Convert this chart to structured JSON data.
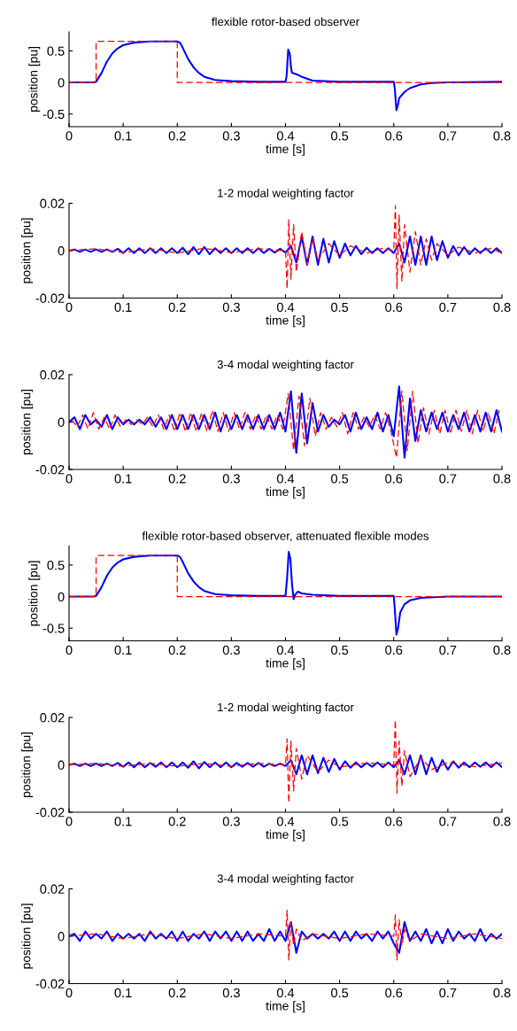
{
  "chart_data": [
    {
      "type": "line",
      "title": "flexible rotor-based observer",
      "xlabel": "time [s]",
      "ylabel": "position [pu]",
      "xlim": [
        0,
        0.8
      ],
      "xticks": [
        0,
        0.1,
        0.2,
        0.3,
        0.4,
        0.5,
        0.6,
        0.7,
        0.8
      ],
      "ylim": [
        -0.7,
        0.8
      ],
      "yticks": [
        -0.5,
        0,
        0.5
      ],
      "series": [
        {
          "color": "#0000ff",
          "x": [
            0,
            0.045,
            0.05,
            0.06,
            0.07,
            0.08,
            0.09,
            0.1,
            0.12,
            0.15,
            0.2,
            0.205,
            0.21,
            0.22,
            0.23,
            0.24,
            0.25,
            0.27,
            0.3,
            0.35,
            0.4,
            0.402,
            0.405,
            0.408,
            0.41,
            0.412,
            0.42,
            0.43,
            0.45,
            0.5,
            0.6,
            0.602,
            0.605,
            0.608,
            0.61,
            0.62,
            0.63,
            0.65,
            0.67,
            0.7,
            0.8
          ],
          "values": [
            0,
            0,
            0.01,
            0.15,
            0.33,
            0.46,
            0.54,
            0.59,
            0.63,
            0.65,
            0.65,
            0.63,
            0.55,
            0.37,
            0.24,
            0.15,
            0.09,
            0.04,
            0.02,
            0.01,
            0.01,
            0.1,
            0.52,
            0.45,
            0.25,
            0.15,
            0.13,
            0.09,
            0.03,
            0.01,
            0.01,
            -0.1,
            -0.44,
            -0.35,
            -0.25,
            -0.15,
            -0.09,
            -0.03,
            -0.01,
            0,
            0.01
          ]
        },
        {
          "color": "#ff0000",
          "line_style": "dashed",
          "x": [
            0,
            0.05,
            0.05,
            0.2,
            0.2,
            0.8
          ],
          "values": [
            0,
            0,
            0.65,
            0.65,
            0,
            0
          ]
        }
      ]
    },
    {
      "type": "line",
      "title": "1-2 modal weighting factor",
      "xlabel": "time [s]",
      "ylabel": "position [pu]",
      "xlim": [
        0,
        0.8
      ],
      "xticks": [
        0,
        0.1,
        0.2,
        0.3,
        0.4,
        0.5,
        0.6,
        0.7,
        0.8
      ],
      "ylim": [
        -0.02,
        0.02
      ],
      "yticks": [
        -0.02,
        0,
        0.02
      ],
      "series": [
        {
          "color": "#0000ff",
          "x": [
            0,
            0.01,
            0.02,
            0.03,
            0.04,
            0.05,
            0.06,
            0.07,
            0.08,
            0.09,
            0.1,
            0.11,
            0.12,
            0.13,
            0.14,
            0.15,
            0.16,
            0.17,
            0.18,
            0.19,
            0.2,
            0.21,
            0.22,
            0.23,
            0.24,
            0.25,
            0.26,
            0.27,
            0.28,
            0.29,
            0.3,
            0.31,
            0.32,
            0.33,
            0.34,
            0.35,
            0.36,
            0.37,
            0.38,
            0.39,
            0.4,
            0.41,
            0.42,
            0.43,
            0.44,
            0.45,
            0.46,
            0.47,
            0.48,
            0.49,
            0.5,
            0.51,
            0.52,
            0.53,
            0.54,
            0.55,
            0.56,
            0.57,
            0.58,
            0.59,
            0.6,
            0.61,
            0.62,
            0.63,
            0.64,
            0.65,
            0.66,
            0.67,
            0.68,
            0.69,
            0.7,
            0.71,
            0.72,
            0.73,
            0.74,
            0.75,
            0.76,
            0.77,
            0.78,
            0.79,
            0.8
          ],
          "values": [
            0,
            0.0005,
            -0.0005,
            0.0005,
            -0.0005,
            0.0005,
            -0.0005,
            0.0005,
            -0.0005,
            0.0008,
            -0.001,
            0.001,
            -0.001,
            0.001,
            -0.001,
            0.001,
            -0.001,
            0.001,
            -0.001,
            0.001,
            -0.001,
            0.0012,
            -0.0015,
            0.0015,
            -0.0015,
            0.0015,
            -0.0015,
            0.001,
            -0.001,
            0.001,
            -0.001,
            0.001,
            -0.001,
            0.001,
            -0.001,
            0.001,
            -0.001,
            0.0008,
            -0.0008,
            0.0008,
            -0.0008,
            0.002,
            -0.005,
            0.006,
            -0.006,
            0.006,
            -0.006,
            0.005,
            -0.005,
            0.004,
            -0.003,
            0.003,
            -0.002,
            0.002,
            -0.0015,
            0.0012,
            -0.001,
            0.001,
            -0.001,
            0.001,
            -0.001,
            0.003,
            -0.005,
            0.006,
            -0.006,
            0.006,
            -0.006,
            0.006,
            -0.004,
            0.004,
            -0.003,
            0.002,
            -0.002,
            0.0015,
            -0.0015,
            0.001,
            -0.001,
            0.001,
            -0.001,
            0.001,
            -0.001
          ]
        },
        {
          "color": "#ff0000",
          "line_style": "dashed",
          "x": [
            0,
            0.05,
            0.1,
            0.15,
            0.2,
            0.25,
            0.3,
            0.35,
            0.4,
            0.403,
            0.406,
            0.41,
            0.415,
            0.42,
            0.43,
            0.44,
            0.45,
            0.46,
            0.48,
            0.5,
            0.52,
            0.55,
            0.58,
            0.6,
            0.603,
            0.606,
            0.61,
            0.615,
            0.62,
            0.63,
            0.64,
            0.65,
            0.66,
            0.67,
            0.68,
            0.7,
            0.72,
            0.75,
            0.78,
            0.8
          ],
          "values": [
            0,
            0.0008,
            -0.0008,
            0.0008,
            -0.001,
            0.001,
            -0.0008,
            0.0008,
            0,
            -0.016,
            0.013,
            -0.012,
            0.011,
            -0.009,
            0.008,
            -0.006,
            0.005,
            -0.004,
            0.003,
            -0.002,
            0.002,
            -0.001,
            0.001,
            0,
            0.019,
            -0.016,
            0.015,
            -0.013,
            0.011,
            -0.009,
            0.008,
            -0.006,
            0.005,
            -0.004,
            0.003,
            -0.002,
            0.0015,
            -0.001,
            0.001,
            -0.001
          ]
        }
      ]
    },
    {
      "type": "line",
      "title": "3-4 modal weighting factor",
      "xlabel": "time [s]",
      "ylabel": "position [pu]",
      "xlim": [
        0,
        0.8
      ],
      "xticks": [
        0,
        0.1,
        0.2,
        0.3,
        0.4,
        0.5,
        0.6,
        0.7,
        0.8
      ],
      "ylim": [
        -0.02,
        0.02
      ],
      "yticks": [
        -0.02,
        0,
        0.02
      ],
      "series": [
        {
          "color": "#0000ff",
          "x": [
            0,
            0.01,
            0.02,
            0.03,
            0.04,
            0.05,
            0.06,
            0.07,
            0.08,
            0.09,
            0.1,
            0.11,
            0.12,
            0.13,
            0.14,
            0.15,
            0.16,
            0.17,
            0.18,
            0.19,
            0.2,
            0.21,
            0.22,
            0.23,
            0.24,
            0.25,
            0.26,
            0.27,
            0.28,
            0.29,
            0.3,
            0.31,
            0.32,
            0.33,
            0.34,
            0.35,
            0.36,
            0.37,
            0.38,
            0.39,
            0.4,
            0.41,
            0.42,
            0.43,
            0.44,
            0.45,
            0.46,
            0.47,
            0.48,
            0.49,
            0.5,
            0.51,
            0.52,
            0.53,
            0.54,
            0.55,
            0.56,
            0.57,
            0.58,
            0.59,
            0.6,
            0.61,
            0.62,
            0.63,
            0.64,
            0.65,
            0.66,
            0.67,
            0.68,
            0.69,
            0.7,
            0.71,
            0.72,
            0.73,
            0.74,
            0.75,
            0.76,
            0.77,
            0.78,
            0.79,
            0.8
          ],
          "values": [
            0,
            0.002,
            -0.003,
            0.003,
            -0.001,
            0.001,
            -0.002,
            0.003,
            -0.003,
            0.002,
            -0.001,
            0.001,
            -0.001,
            0.001,
            -0.001,
            0.002,
            -0.002,
            0.002,
            -0.003,
            0.003,
            -0.003,
            0.003,
            -0.003,
            0.003,
            -0.003,
            0.003,
            -0.003,
            0.004,
            -0.004,
            0.003,
            -0.003,
            0.003,
            -0.003,
            0.003,
            -0.003,
            0.003,
            -0.003,
            0.003,
            -0.003,
            0.004,
            -0.004,
            0.013,
            -0.013,
            0.012,
            -0.009,
            0.008,
            -0.004,
            0.003,
            -0.002,
            0.001,
            -0.001,
            0.003,
            -0.004,
            0.004,
            -0.003,
            0.002,
            -0.003,
            0.004,
            -0.004,
            0.003,
            -0.006,
            0.015,
            -0.015,
            0.01,
            -0.008,
            0.005,
            -0.004,
            0.004,
            -0.003,
            0.004,
            -0.004,
            0.003,
            -0.003,
            0.004,
            -0.004,
            0.003,
            -0.004,
            0.004,
            -0.004,
            0.005,
            -0.004
          ]
        },
        {
          "color": "#ff0000",
          "line_style": "dashed",
          "x": [
            0.005,
            0.015,
            0.025,
            0.035,
            0.045,
            0.055,
            0.065,
            0.075,
            0.085,
            0.095,
            0.105,
            0.115,
            0.125,
            0.135,
            0.145,
            0.155,
            0.165,
            0.175,
            0.185,
            0.195,
            0.205,
            0.215,
            0.225,
            0.235,
            0.245,
            0.255,
            0.265,
            0.275,
            0.285,
            0.295,
            0.305,
            0.315,
            0.325,
            0.335,
            0.345,
            0.355,
            0.365,
            0.375,
            0.385,
            0.395,
            0.405,
            0.415,
            0.425,
            0.435,
            0.445,
            0.455,
            0.465,
            0.475,
            0.485,
            0.495,
            0.505,
            0.515,
            0.525,
            0.535,
            0.545,
            0.555,
            0.565,
            0.575,
            0.585,
            0.595,
            0.605,
            0.615,
            0.625,
            0.635,
            0.645,
            0.655,
            0.665,
            0.675,
            0.685,
            0.695,
            0.705,
            0.715,
            0.725,
            0.735,
            0.745,
            0.755,
            0.765,
            0.775,
            0.785,
            0.795
          ],
          "values": [
            0.001,
            -0.002,
            0.003,
            -0.003,
            0.004,
            -0.003,
            0.002,
            -0.003,
            0.003,
            -0.002,
            0.001,
            -0.001,
            0.001,
            -0.001,
            0.002,
            -0.002,
            0.003,
            -0.003,
            0.003,
            -0.004,
            0.004,
            -0.004,
            0.004,
            -0.004,
            0.004,
            -0.004,
            0.005,
            -0.004,
            0.004,
            -0.004,
            0.004,
            -0.003,
            0.004,
            -0.003,
            0.003,
            -0.003,
            0.003,
            -0.003,
            0.003,
            -0.003,
            0.012,
            -0.012,
            0.011,
            -0.01,
            0.01,
            -0.006,
            0.004,
            -0.003,
            0.002,
            -0.002,
            0.004,
            -0.005,
            0.004,
            -0.003,
            0.002,
            -0.002,
            0.003,
            -0.003,
            0.004,
            -0.004,
            -0.015,
            0.013,
            -0.012,
            0.013,
            -0.009,
            0.006,
            -0.005,
            0.005,
            -0.005,
            0.005,
            -0.005,
            0.005,
            -0.004,
            0.005,
            -0.005,
            0.005,
            -0.004,
            0.004,
            -0.005,
            0.005
          ]
        }
      ]
    },
    {
      "type": "line",
      "title": "flexible rotor-based observer, attenuated flexible modes",
      "xlabel": "time [s]",
      "ylabel": "position [pu]",
      "xlim": [
        0,
        0.8
      ],
      "xticks": [
        0,
        0.1,
        0.2,
        0.3,
        0.4,
        0.5,
        0.6,
        0.7,
        0.8
      ],
      "ylim": [
        -0.7,
        0.8
      ],
      "yticks": [
        -0.5,
        0,
        0.5
      ],
      "series": [
        {
          "color": "#0000ff",
          "x": [
            0,
            0.045,
            0.05,
            0.06,
            0.07,
            0.08,
            0.09,
            0.1,
            0.12,
            0.15,
            0.2,
            0.205,
            0.21,
            0.22,
            0.23,
            0.24,
            0.25,
            0.27,
            0.3,
            0.35,
            0.4,
            0.403,
            0.406,
            0.409,
            0.412,
            0.415,
            0.418,
            0.423,
            0.43,
            0.45,
            0.5,
            0.6,
            0.602,
            0.605,
            0.608,
            0.612,
            0.62,
            0.63,
            0.65,
            0.7,
            0.8
          ],
          "values": [
            0,
            0,
            0.01,
            0.15,
            0.33,
            0.46,
            0.54,
            0.59,
            0.63,
            0.65,
            0.65,
            0.63,
            0.55,
            0.37,
            0.24,
            0.15,
            0.09,
            0.04,
            0.02,
            0.01,
            0.01,
            0.3,
            0.71,
            0.6,
            0.2,
            -0.04,
            0.03,
            0.08,
            0.05,
            0.03,
            0.01,
            0.01,
            -0.2,
            -0.6,
            -0.5,
            -0.25,
            -0.12,
            -0.06,
            -0.02,
            0,
            0
          ]
        },
        {
          "color": "#ff0000",
          "line_style": "dashed",
          "x": [
            0,
            0.05,
            0.05,
            0.2,
            0.2,
            0.8
          ],
          "values": [
            0,
            0,
            0.65,
            0.65,
            0,
            0
          ]
        }
      ]
    },
    {
      "type": "line",
      "title": "1-2 modal weighting factor",
      "xlabel": "time [s]",
      "ylabel": "position [pu]",
      "xlim": [
        0,
        0.8
      ],
      "xticks": [
        0,
        0.1,
        0.2,
        0.3,
        0.4,
        0.5,
        0.6,
        0.7,
        0.8
      ],
      "ylim": [
        -0.02,
        0.02
      ],
      "yticks": [
        -0.02,
        0,
        0.02
      ],
      "series": [
        {
          "color": "#0000ff",
          "x": [
            0,
            0.01,
            0.02,
            0.03,
            0.04,
            0.05,
            0.06,
            0.07,
            0.08,
            0.09,
            0.1,
            0.11,
            0.12,
            0.13,
            0.14,
            0.15,
            0.16,
            0.17,
            0.18,
            0.19,
            0.2,
            0.21,
            0.22,
            0.23,
            0.24,
            0.25,
            0.26,
            0.27,
            0.28,
            0.29,
            0.3,
            0.31,
            0.32,
            0.33,
            0.34,
            0.35,
            0.36,
            0.37,
            0.38,
            0.39,
            0.4,
            0.41,
            0.42,
            0.43,
            0.44,
            0.45,
            0.46,
            0.47,
            0.48,
            0.49,
            0.5,
            0.51,
            0.52,
            0.53,
            0.54,
            0.55,
            0.56,
            0.57,
            0.58,
            0.59,
            0.6,
            0.61,
            0.62,
            0.63,
            0.64,
            0.65,
            0.66,
            0.67,
            0.68,
            0.69,
            0.7,
            0.71,
            0.72,
            0.73,
            0.74,
            0.75,
            0.76,
            0.77,
            0.78,
            0.79,
            0.8
          ],
          "values": [
            0,
            0.0005,
            -0.0005,
            0.0005,
            -0.0005,
            0.0005,
            -0.0005,
            0.0005,
            -0.0005,
            0.0008,
            -0.0008,
            0.001,
            -0.001,
            0.001,
            -0.001,
            0.0008,
            -0.0008,
            0.001,
            -0.001,
            0.001,
            -0.001,
            0.001,
            -0.0012,
            0.0015,
            -0.0015,
            0.0012,
            -0.001,
            0.001,
            -0.001,
            0.001,
            -0.001,
            0.0008,
            -0.0008,
            0.0008,
            -0.0008,
            0.0008,
            -0.0008,
            0.0005,
            -0.0005,
            0.0005,
            -0.0005,
            0.002,
            -0.004,
            0.004,
            -0.004,
            0.004,
            -0.0035,
            0.003,
            -0.003,
            0.0025,
            -0.002,
            0.0015,
            -0.0012,
            0.001,
            -0.001,
            0.0008,
            -0.0008,
            0.001,
            -0.001,
            0.001,
            -0.001,
            0.002,
            -0.004,
            0.004,
            -0.004,
            0.004,
            -0.004,
            0.003,
            -0.003,
            0.002,
            -0.002,
            0.0015,
            -0.0012,
            0.001,
            -0.001,
            0.001,
            -0.0008,
            0.001,
            -0.001,
            0.001,
            -0.001
          ]
        },
        {
          "color": "#ff0000",
          "line_style": "dashed",
          "x": [
            0,
            0.05,
            0.1,
            0.15,
            0.2,
            0.25,
            0.3,
            0.35,
            0.4,
            0.403,
            0.406,
            0.41,
            0.415,
            0.42,
            0.43,
            0.44,
            0.46,
            0.48,
            0.5,
            0.55,
            0.6,
            0.603,
            0.606,
            0.61,
            0.615,
            0.62,
            0.63,
            0.65,
            0.67,
            0.7,
            0.75,
            0.8
          ],
          "values": [
            0,
            0.0006,
            -0.0006,
            0.0006,
            -0.0006,
            0.0006,
            -0.0006,
            0.0006,
            0,
            0.011,
            -0.016,
            0.01,
            -0.011,
            0.007,
            -0.006,
            0.004,
            -0.003,
            0.002,
            -0.001,
            0.0008,
            0,
            0.019,
            -0.012,
            0.01,
            -0.009,
            0.006,
            -0.005,
            0.003,
            -0.002,
            0.001,
            -0.0008,
            0.0008
          ]
        }
      ]
    },
    {
      "type": "line",
      "title": "3-4 modal weighting factor",
      "xlabel": "time [s]",
      "ylabel": "position [pu]",
      "xlim": [
        0,
        0.8
      ],
      "xticks": [
        0,
        0.1,
        0.2,
        0.3,
        0.4,
        0.5,
        0.6,
        0.7,
        0.8
      ],
      "ylim": [
        -0.02,
        0.02
      ],
      "yticks": [
        -0.02,
        0,
        0.02
      ],
      "series": [
        {
          "color": "#0000ff",
          "x": [
            0,
            0.01,
            0.02,
            0.03,
            0.04,
            0.05,
            0.06,
            0.07,
            0.08,
            0.09,
            0.1,
            0.11,
            0.12,
            0.13,
            0.14,
            0.15,
            0.16,
            0.17,
            0.18,
            0.19,
            0.2,
            0.21,
            0.22,
            0.23,
            0.24,
            0.25,
            0.26,
            0.27,
            0.28,
            0.29,
            0.3,
            0.31,
            0.32,
            0.33,
            0.34,
            0.35,
            0.36,
            0.37,
            0.38,
            0.39,
            0.4,
            0.41,
            0.42,
            0.43,
            0.44,
            0.45,
            0.46,
            0.47,
            0.48,
            0.49,
            0.5,
            0.51,
            0.52,
            0.53,
            0.54,
            0.55,
            0.56,
            0.57,
            0.58,
            0.59,
            0.6,
            0.61,
            0.62,
            0.63,
            0.64,
            0.65,
            0.66,
            0.67,
            0.68,
            0.69,
            0.7,
            0.71,
            0.72,
            0.73,
            0.74,
            0.75,
            0.76,
            0.77,
            0.78,
            0.79,
            0.8
          ],
          "values": [
            0,
            0.001,
            -0.002,
            0.002,
            -0.001,
            0.001,
            -0.001,
            0.002,
            -0.002,
            0.001,
            -0.001,
            0.001,
            -0.001,
            0.001,
            -0.002,
            0.002,
            -0.001,
            0.001,
            -0.001,
            0.002,
            -0.002,
            0.002,
            -0.002,
            0.001,
            -0.001,
            0.002,
            -0.002,
            0.002,
            -0.001,
            0.002,
            -0.002,
            0.002,
            -0.002,
            0.002,
            -0.002,
            0.001,
            -0.002,
            0.003,
            -0.002,
            0.002,
            -0.002,
            0.006,
            -0.007,
            0.002,
            -0.001,
            0.001,
            -0.001,
            0.001,
            -0.001,
            0.002,
            -0.002,
            0.002,
            -0.002,
            0.002,
            -0.001,
            0.001,
            -0.002,
            0.002,
            -0.001,
            0.002,
            -0.003,
            -0.007,
            0.006,
            -0.002,
            0.002,
            -0.002,
            0.003,
            -0.003,
            0.002,
            -0.003,
            0.003,
            -0.002,
            0.002,
            -0.001,
            0.001,
            -0.002,
            0.003,
            -0.002,
            0.001,
            -0.001,
            0.001
          ]
        },
        {
          "color": "#ff0000",
          "line_style": "dashed",
          "x": [
            0,
            0.05,
            0.1,
            0.15,
            0.2,
            0.25,
            0.3,
            0.35,
            0.4,
            0.403,
            0.406,
            0.41,
            0.415,
            0.42,
            0.43,
            0.45,
            0.5,
            0.55,
            0.6,
            0.603,
            0.606,
            0.61,
            0.615,
            0.62,
            0.63,
            0.65,
            0.7,
            0.75,
            0.8
          ],
          "values": [
            0,
            0.001,
            -0.001,
            0.001,
            -0.001,
            0.001,
            -0.001,
            0.001,
            0,
            0.011,
            -0.01,
            0.006,
            -0.004,
            0.003,
            -0.002,
            0.001,
            -0.001,
            0.001,
            0,
            0.009,
            -0.01,
            0.007,
            -0.004,
            0.003,
            -0.002,
            0.001,
            -0.001,
            0.001,
            -0.001
          ]
        }
      ]
    }
  ]
}
